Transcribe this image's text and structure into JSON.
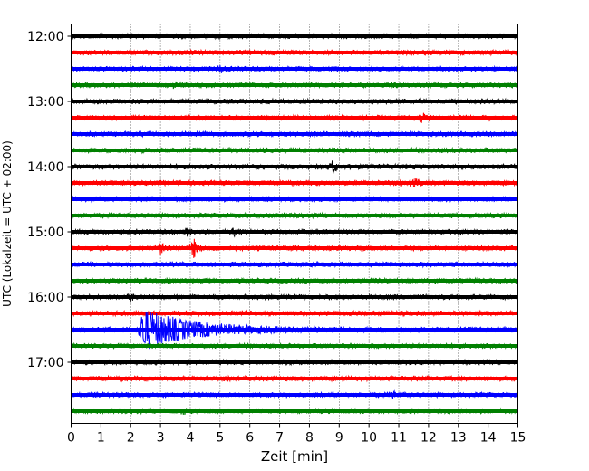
{
  "chart_data": {
    "type": "line",
    "title": "",
    "xlabel": "Zeit  [min]",
    "ylabel": "UTC (Lokalzeit = UTC + 02:00)",
    "xlim": [
      0,
      15
    ],
    "x_ticks": [
      0,
      1,
      2,
      3,
      4,
      5,
      6,
      7,
      8,
      9,
      10,
      11,
      12,
      13,
      14,
      15
    ],
    "x_tick_labels": [
      "0",
      "1",
      "2",
      "3",
      "4",
      "5",
      "6",
      "7",
      "8",
      "9",
      "10",
      "11",
      "12",
      "13",
      "14",
      "15"
    ],
    "ylim_trace_start_minutes_utc": [
      720,
      1065
    ],
    "y_tick_labels": [
      "12:00",
      "13:00",
      "14:00",
      "15:00",
      "16:00",
      "17:00"
    ],
    "y_tick_minutes_utc": [
      720,
      780,
      840,
      900,
      960,
      1020
    ],
    "trace_interval_minutes": 15,
    "trace_colors": [
      "#000000",
      "#ff0000",
      "#0000ff",
      "#008000"
    ],
    "vertical_grid": "dotted",
    "legend": "none",
    "traces": [
      {
        "start": "12:00",
        "color": "#000000",
        "events": []
      },
      {
        "start": "12:15",
        "color": "#ff0000",
        "events": []
      },
      {
        "start": "12:30",
        "color": "#0000ff",
        "events": [
          {
            "t": 5.0,
            "amp": 0.18
          }
        ]
      },
      {
        "start": "12:45",
        "color": "#008000",
        "events": [
          {
            "t": 3.5,
            "amp": 0.15
          },
          {
            "t": 10.7,
            "amp": 0.15
          }
        ]
      },
      {
        "start": "13:00",
        "color": "#000000",
        "events": []
      },
      {
        "start": "13:15",
        "color": "#ff0000",
        "events": [
          {
            "t": 11.8,
            "amp": 0.28
          }
        ]
      },
      {
        "start": "13:30",
        "color": "#0000ff",
        "events": []
      },
      {
        "start": "13:45",
        "color": "#008000",
        "events": []
      },
      {
        "start": "14:00",
        "color": "#000000",
        "events": [
          {
            "t": 8.8,
            "amp": 0.35
          }
        ]
      },
      {
        "start": "14:15",
        "color": "#ff0000",
        "events": [
          {
            "t": 11.5,
            "amp": 0.3
          }
        ]
      },
      {
        "start": "14:30",
        "color": "#0000ff",
        "events": []
      },
      {
        "start": "14:45",
        "color": "#008000",
        "events": []
      },
      {
        "start": "15:00",
        "color": "#000000",
        "events": [
          {
            "t": 3.9,
            "amp": 0.2
          },
          {
            "t": 5.5,
            "amp": 0.2
          }
        ]
      },
      {
        "start": "15:15",
        "color": "#ff0000",
        "events": [
          {
            "t": 3.0,
            "amp": 0.25
          },
          {
            "t": 4.1,
            "amp": 0.6
          }
        ]
      },
      {
        "start": "15:30",
        "color": "#0000ff",
        "events": []
      },
      {
        "start": "15:45",
        "color": "#008000",
        "events": []
      },
      {
        "start": "16:00",
        "color": "#000000",
        "events": [
          {
            "t": 2.0,
            "amp": 0.15
          }
        ]
      },
      {
        "start": "16:15",
        "color": "#ff0000",
        "events": []
      },
      {
        "start": "16:30",
        "color": "#0000ff",
        "events": [
          {
            "t": 2.4,
            "amp": 1.25,
            "coda": 4.5
          }
        ]
      },
      {
        "start": "16:45",
        "color": "#008000",
        "events": []
      },
      {
        "start": "17:00",
        "color": "#000000",
        "events": []
      },
      {
        "start": "17:15",
        "color": "#ff0000",
        "events": []
      },
      {
        "start": "17:30",
        "color": "#0000ff",
        "events": [
          {
            "t": 10.8,
            "amp": 0.2
          }
        ]
      },
      {
        "start": "17:45",
        "color": "#008000",
        "events": [
          {
            "t": 3.8,
            "amp": 0.18
          }
        ]
      }
    ]
  }
}
